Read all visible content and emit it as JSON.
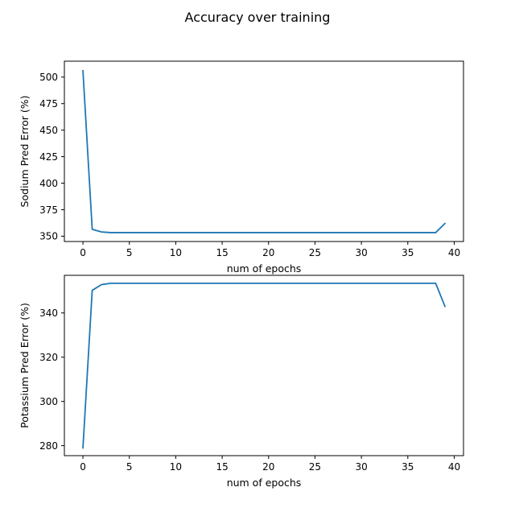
{
  "figure": {
    "title": "Accuracy over training"
  },
  "chart_data": [
    {
      "type": "line",
      "xlabel": "num of epochs",
      "ylabel": "Sodium Pred Error (%)",
      "xlim": [
        -2,
        41
      ],
      "ylim": [
        345,
        515
      ],
      "xticks": [
        0,
        5,
        10,
        15,
        20,
        25,
        30,
        35,
        40
      ],
      "yticks": [
        350,
        375,
        400,
        425,
        450,
        475,
        500
      ],
      "grid": false,
      "color": "#1f77b4",
      "series": [
        {
          "x": [
            0,
            1,
            2,
            3,
            4,
            5,
            6,
            7,
            8,
            9,
            10,
            11,
            12,
            13,
            14,
            15,
            16,
            17,
            18,
            19,
            20,
            21,
            22,
            23,
            24,
            25,
            26,
            27,
            28,
            29,
            30,
            31,
            32,
            33,
            34,
            35,
            36,
            37,
            38,
            39
          ],
          "values": [
            506,
            356.5,
            354,
            353.4,
            353.4,
            353.4,
            353.4,
            353.4,
            353.4,
            353.4,
            353.4,
            353.4,
            353.4,
            353.4,
            353.4,
            353.4,
            353.4,
            353.4,
            353.4,
            353.4,
            353.4,
            353.4,
            353.4,
            353.4,
            353.4,
            353.4,
            353.4,
            353.4,
            353.4,
            353.4,
            353.4,
            353.4,
            353.4,
            353.4,
            353.4,
            353.4,
            353.4,
            353.4,
            353.4,
            362
          ]
        }
      ]
    },
    {
      "type": "line",
      "xlabel": "num of epochs",
      "ylabel": "Potassium Pred Error (%)",
      "xlim": [
        -2,
        41
      ],
      "ylim": [
        275.5,
        357
      ],
      "xticks": [
        0,
        5,
        10,
        15,
        20,
        25,
        30,
        35,
        40
      ],
      "yticks": [
        280,
        300,
        320,
        340
      ],
      "grid": false,
      "color": "#1f77b4",
      "series": [
        {
          "x": [
            0,
            1,
            2,
            3,
            4,
            5,
            6,
            7,
            8,
            9,
            10,
            11,
            12,
            13,
            14,
            15,
            16,
            17,
            18,
            19,
            20,
            21,
            22,
            23,
            24,
            25,
            26,
            27,
            28,
            29,
            30,
            31,
            32,
            33,
            34,
            35,
            36,
            37,
            38,
            39
          ],
          "values": [
            279,
            350.2,
            352.8,
            353.4,
            353.4,
            353.4,
            353.4,
            353.4,
            353.4,
            353.4,
            353.4,
            353.4,
            353.4,
            353.4,
            353.4,
            353.4,
            353.4,
            353.4,
            353.4,
            353.4,
            353.4,
            353.4,
            353.4,
            353.4,
            353.4,
            353.4,
            353.4,
            353.4,
            353.4,
            353.4,
            353.4,
            353.4,
            353.4,
            353.4,
            353.4,
            353.4,
            353.4,
            353.4,
            353.4,
            343
          ]
        }
      ]
    }
  ]
}
